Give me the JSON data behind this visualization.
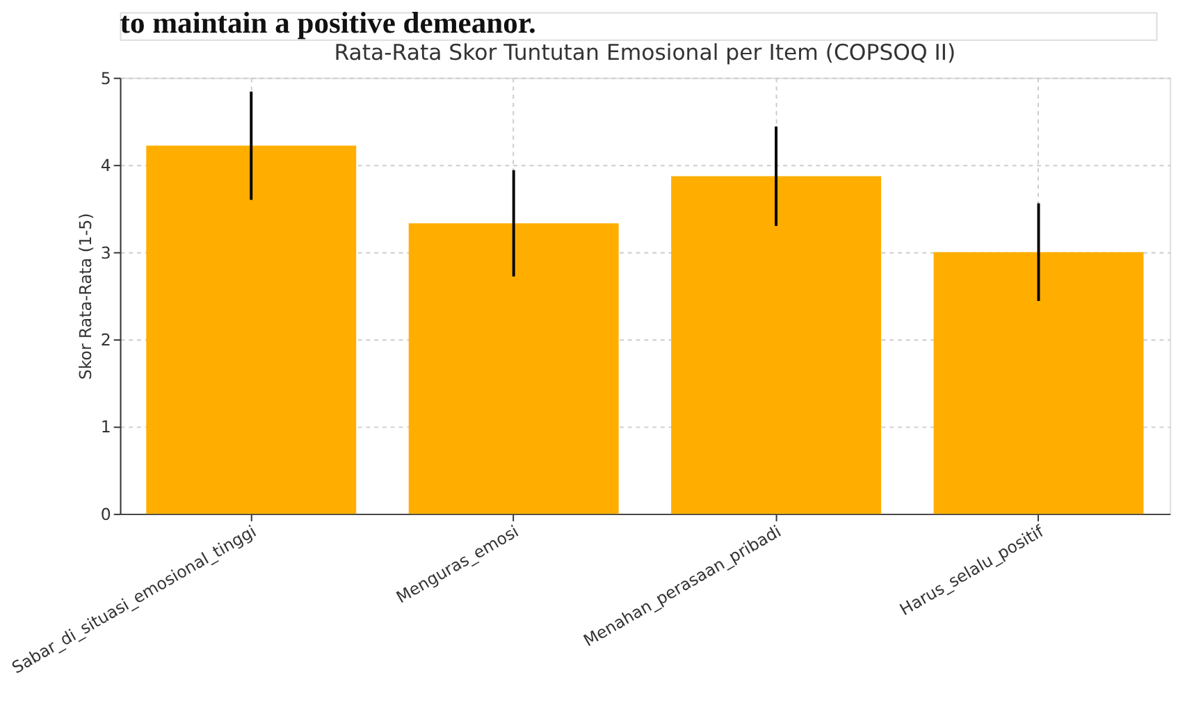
{
  "chart_data": {
    "type": "bar",
    "title": "Rata-Rata Skor Tuntutan Emosional per Item (COPSOQ II)",
    "ylabel": "Skor Rata-Rata (1-5)",
    "categories": [
      "Sabar_di_situasi_emosional_tinggi",
      "Menguras_emosi",
      "Menahan_perasaan_pribadi",
      "Harus_selalu_positif"
    ],
    "values": [
      4.22,
      3.33,
      3.87,
      3.0
    ],
    "errors": [
      0.62,
      0.61,
      0.57,
      0.56
    ],
    "color": "#ffae00",
    "ylim": [
      0,
      5
    ],
    "yticks": [
      0,
      1,
      2,
      3,
      4,
      5
    ],
    "grid": true,
    "annotations": [
      "to maintain a positive demeanor."
    ]
  }
}
